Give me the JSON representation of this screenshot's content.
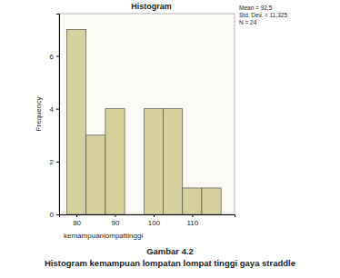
{
  "chart_data": {
    "type": "histogram",
    "title": "Histogram",
    "x_label": "kemampuanlompattinggi",
    "y_label": "Frequency",
    "bins": [
      77.5,
      82.5,
      87.5,
      92.5,
      97.5,
      102.5,
      107.5,
      112.5,
      117.5
    ],
    "values": [
      7,
      3,
      4,
      0,
      4,
      4,
      1,
      1
    ],
    "color": "#d6d09c",
    "xlim": [
      75.5,
      121
    ],
    "xticks": [
      80,
      90,
      100,
      110
    ],
    "ylim": [
      0,
      7.6
    ],
    "yticks": [
      0,
      2,
      4,
      6
    ],
    "annotations": [
      "Mean = 92,5",
      "Std. Dev. = 11,325",
      "N = 24"
    ]
  },
  "figure_caption": {
    "number": "Gambar 4.2",
    "text": "Histogram kemampuan lompatan lompat tinggi gaya straddle"
  }
}
